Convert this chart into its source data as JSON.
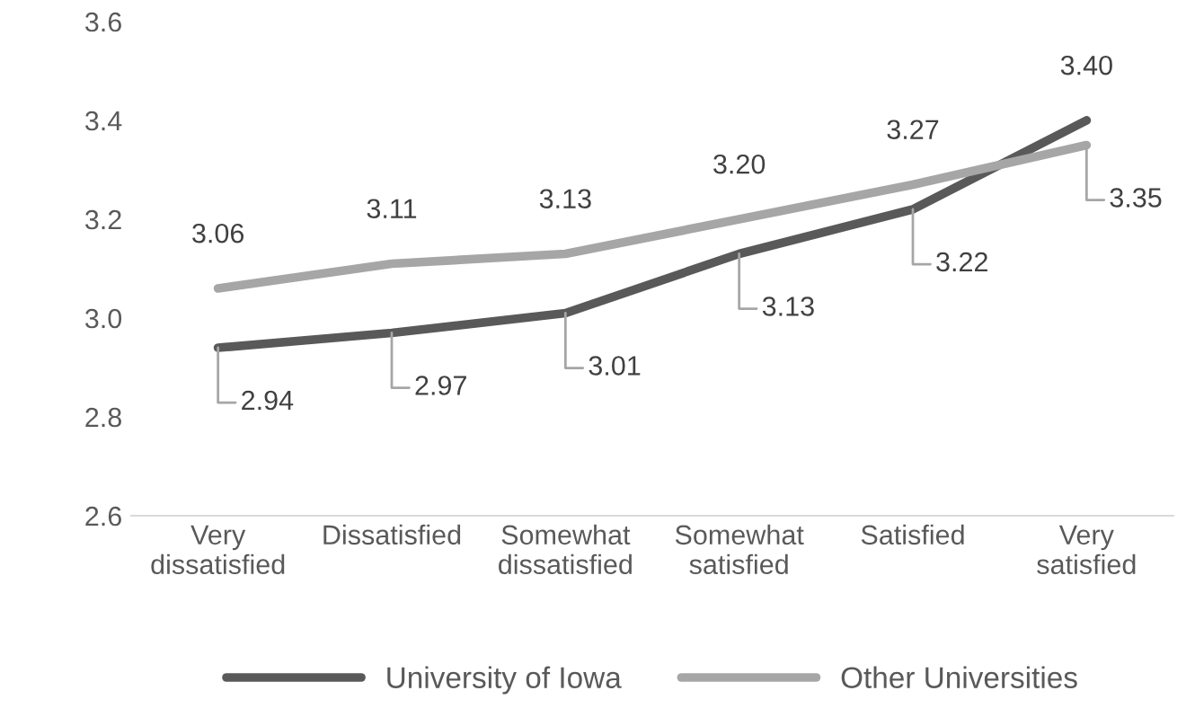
{
  "chart_data": {
    "type": "line",
    "categories": [
      "Very\ndissatisfied",
      "Dissatisfied",
      "Somewhat\ndissatisfied",
      "Somewhat\nsatisfied",
      "Satisfied",
      "Very\nsatisfied"
    ],
    "series": [
      {
        "name": "University of Iowa",
        "color": "#595959",
        "values": [
          2.94,
          2.97,
          3.01,
          3.13,
          3.22,
          3.4
        ],
        "value_labels": [
          "2.94",
          "2.97",
          "3.01",
          "3.13",
          "3.22",
          "3.40"
        ]
      },
      {
        "name": "Other Universities",
        "color": "#a6a6a6",
        "values": [
          3.06,
          3.11,
          3.13,
          3.2,
          3.27,
          3.35
        ],
        "value_labels": [
          "3.06",
          "3.11",
          "3.13",
          "3.20",
          "3.27",
          "3.35"
        ]
      }
    ],
    "ylim": [
      2.6,
      3.6
    ],
    "yticks": [
      {
        "value": 2.6,
        "label": "2.6"
      },
      {
        "value": 2.8,
        "label": "2.8"
      },
      {
        "value": 3.0,
        "label": "3.0"
      },
      {
        "value": 3.2,
        "label": "3.2"
      },
      {
        "value": 3.4,
        "label": "3.4"
      },
      {
        "value": 3.6,
        "label": "3.6"
      }
    ],
    "grid": false,
    "legend": "bottom",
    "marker": "none",
    "line_style": "solid"
  }
}
